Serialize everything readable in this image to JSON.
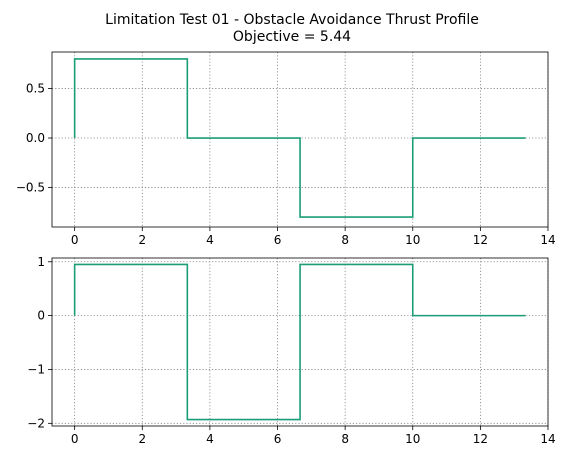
{
  "figure": {
    "title_line1": "Limitation Test 01 - Obstacle Avoidance Thrust Profile",
    "title_line2": "Objective = 5.44"
  },
  "chart_data": [
    {
      "type": "line",
      "drawstyle": "steps-post",
      "color": "#1b9e77",
      "grid": true,
      "xlim": [
        -0.67,
        14
      ],
      "ylim": [
        -0.9,
        0.87
      ],
      "xticks": [
        0,
        2,
        4,
        6,
        8,
        10,
        12,
        14
      ],
      "xtick_labels": [
        "0",
        "2",
        "4",
        "6",
        "8",
        "10",
        "12",
        "14"
      ],
      "yticks": [
        0.5,
        0.0,
        -0.5
      ],
      "ytick_labels": [
        "0.5",
        "0.0",
        "−0.5"
      ],
      "series": [
        {
          "x": [
            0,
            0,
            3.333,
            3.333,
            6.667,
            6.667,
            10,
            10,
            13.333
          ],
          "y": [
            0,
            0.8,
            0.8,
            0,
            0,
            -0.8,
            -0.8,
            0,
            0
          ]
        }
      ]
    },
    {
      "type": "line",
      "drawstyle": "steps-post",
      "color": "#1b9e77",
      "grid": true,
      "xlim": [
        -0.67,
        14
      ],
      "ylim": [
        -2.05,
        1.07
      ],
      "xticks": [
        0,
        2,
        4,
        6,
        8,
        10,
        12,
        14
      ],
      "xtick_labels": [
        "0",
        "2",
        "4",
        "6",
        "8",
        "10",
        "12",
        "14"
      ],
      "yticks": [
        1,
        0,
        -1,
        -2
      ],
      "ytick_labels": [
        "1",
        "0",
        "−1",
        "−2"
      ],
      "series": [
        {
          "x": [
            0,
            0,
            3.333,
            3.333,
            6.667,
            6.667,
            10,
            10,
            13.333
          ],
          "y": [
            0,
            0.95,
            0.95,
            -1.93,
            -1.93,
            0.95,
            0.95,
            0,
            0
          ]
        }
      ]
    }
  ]
}
